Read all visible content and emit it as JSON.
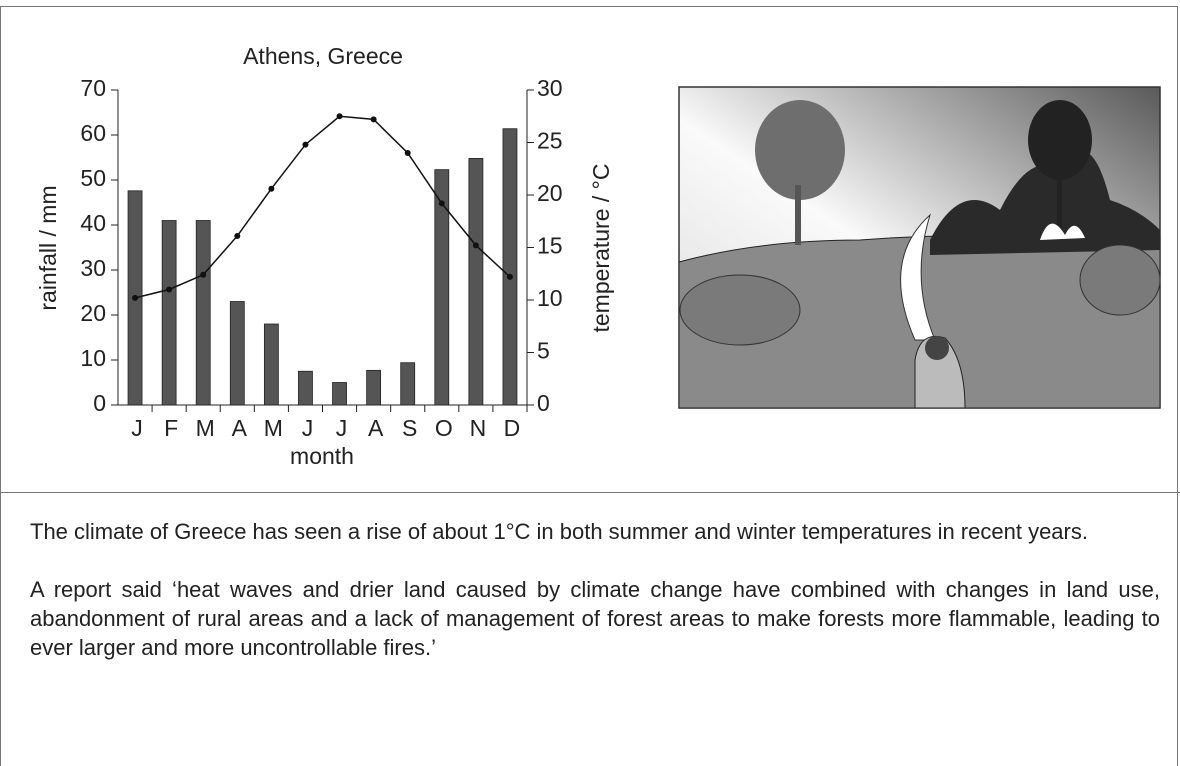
{
  "chart_data": {
    "type": "bar",
    "title": "Athens, Greece",
    "x_label": "month",
    "y_label": "rainfall / mm",
    "y2_label": "temperature / °C",
    "categories": [
      "J",
      "F",
      "M",
      "A",
      "M",
      "J",
      "J",
      "A",
      "S",
      "O",
      "N",
      "D"
    ],
    "series": [
      {
        "type": "bar",
        "color": "#555555",
        "values": [
          47.6,
          41,
          41,
          23,
          18,
          7.5,
          5,
          7.7,
          9.4,
          52.3,
          54.8,
          61.4
        ]
      },
      {
        "type": "line",
        "axis": "y2",
        "color": "#111111",
        "values": [
          10.2,
          11.0,
          12.4,
          16.1,
          20.6,
          24.8,
          27.5,
          27.2,
          24.0,
          19.2,
          15.2,
          12.2
        ]
      }
    ],
    "ylim": [
      0,
      70
    ],
    "yticks": [
      0,
      10,
      20,
      30,
      40,
      50,
      60,
      70
    ],
    "y2lim": [
      0,
      30
    ],
    "y2ticks": [
      0,
      5,
      10,
      15,
      20,
      25,
      30
    ]
  },
  "text": {
    "paragraphs": [
      "The climate of Greece has seen a rise of about 1°C in both summer and winter temperatures in recent years.",
      "A report said ‘heat waves and drier land caused by climate change have combined with changes in land use, abandonment of rural areas and a lack of management of forest areas to make forests more flammable, leading to ever larger and more uncontrollable fires.’"
    ]
  }
}
